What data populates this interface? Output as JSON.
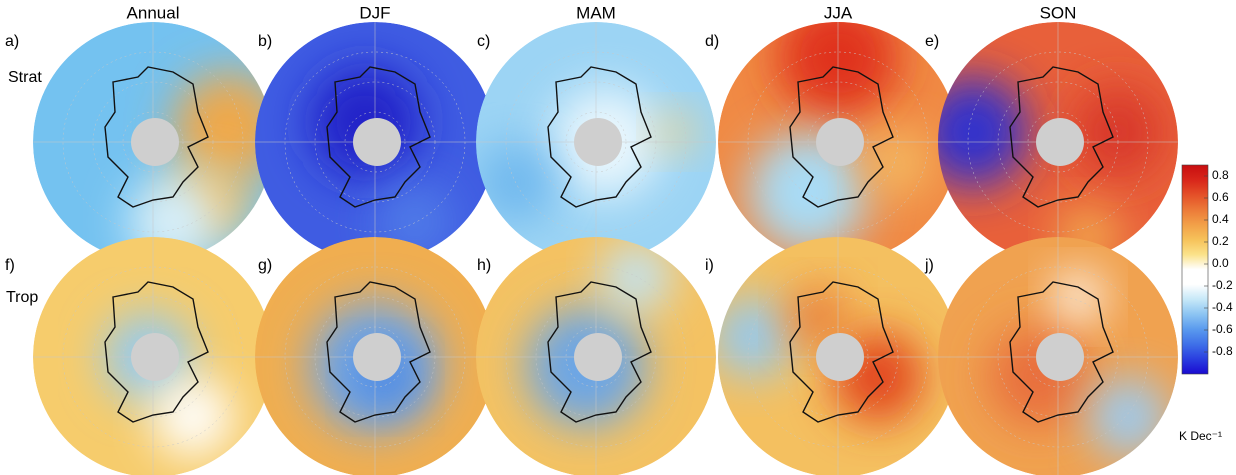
{
  "chart_data": {
    "type": "polar-map-panels",
    "columns": [
      "Annual",
      "DJF",
      "MAM",
      "JJA",
      "SON"
    ],
    "rows": [
      "Strat",
      "Trop"
    ],
    "panel_labels": [
      "a)",
      "b)",
      "c)",
      "d)",
      "e)",
      "f)",
      "g)",
      "h)",
      "i)",
      "j)"
    ],
    "colorbar": {
      "label": "K Dec⁻¹",
      "lim": [
        -1.0,
        0.9
      ],
      "ticks": [
        0.8,
        0.6,
        0.4,
        0.2,
        {
          "value": 0,
          "label": "0.0"
        },
        -0.2,
        -0.4,
        -0.6,
        -0.8
      ]
    }
  }
}
